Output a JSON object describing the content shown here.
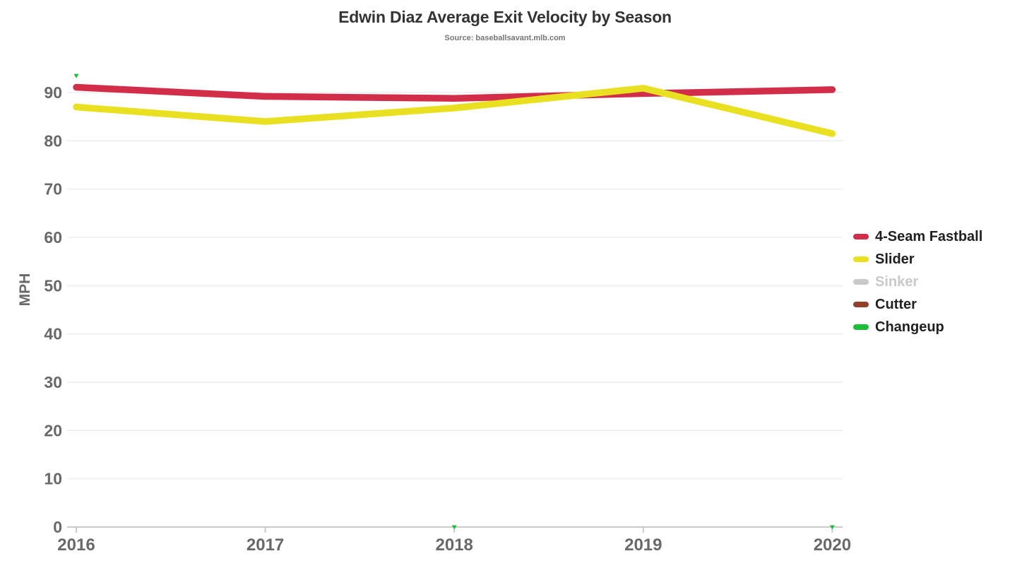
{
  "chart_data": {
    "type": "line",
    "title": "Edwin Diaz Average Exit Velocity by Season",
    "subtitle": "Source: baseballsavant.mlb.com",
    "ylabel": "MPH",
    "x_categories": [
      "2016",
      "2017",
      "2018",
      "2019",
      "2020"
    ],
    "ylim": [
      0,
      95
    ],
    "yticks": [
      0,
      10,
      20,
      30,
      40,
      50,
      60,
      70,
      80,
      90
    ],
    "grid": true,
    "legend_position": "right-middle",
    "colors": {
      "background": "#ffffff",
      "grid": "#e9e9e9",
      "axis": "#c9c9c9",
      "tick_label": "#696969",
      "title": "#333333",
      "subtitle": "#757575",
      "legend_label": "#212121",
      "legend_disabled": "#c9c9c9"
    },
    "series": [
      {
        "name": "4-Seam Fastball",
        "color": "#d22d49",
        "disabled": false,
        "values": [
          91.1,
          89.2,
          88.8,
          89.8,
          90.6
        ]
      },
      {
        "name": "Slider",
        "color": "#e8e020",
        "disabled": false,
        "values": [
          87.0,
          84.0,
          86.8,
          90.9,
          81.5
        ]
      },
      {
        "name": "Sinker",
        "color": "#c9c9c9",
        "disabled": true,
        "values": [
          null,
          null,
          null,
          null,
          null
        ]
      },
      {
        "name": "Cutter",
        "color": "#933f2c",
        "disabled": false,
        "values": [
          null,
          null,
          null,
          null,
          null
        ]
      },
      {
        "name": "Changeup",
        "color": "#1dbe3a",
        "disabled": false,
        "marker": "triangle-down",
        "values": [
          93.5,
          null,
          0,
          null,
          0
        ]
      }
    ]
  }
}
